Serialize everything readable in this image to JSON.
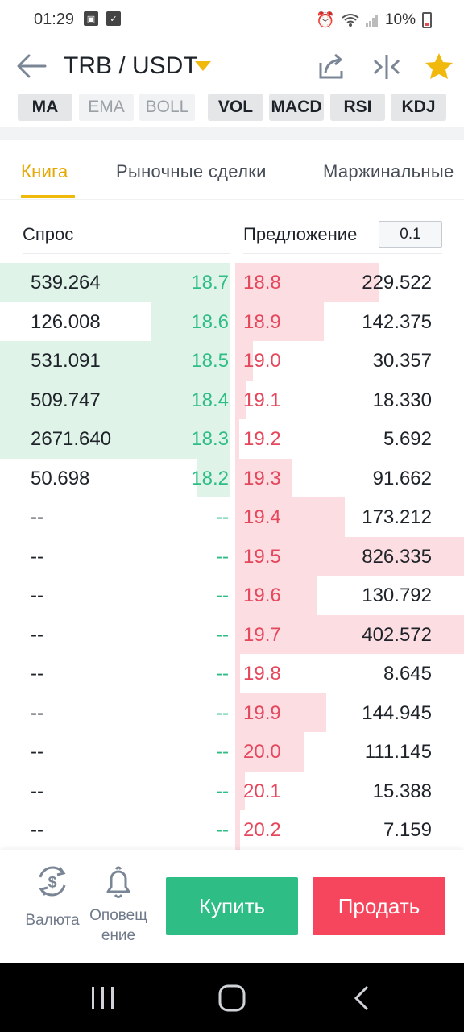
{
  "status_bar": {
    "time": "01:29",
    "battery": "10%"
  },
  "header": {
    "pair": "TRB / USDT",
    "icons": [
      "share-icon",
      "split-icon",
      "favorite-star-icon"
    ],
    "star_color": "#f0b90b"
  },
  "indicators": [
    {
      "label": "MA",
      "active": true
    },
    {
      "label": "EMA",
      "active": false
    },
    {
      "label": "BOLL",
      "active": false
    },
    {
      "label": "VOL",
      "active": true
    },
    {
      "label": "MACD",
      "active": true
    },
    {
      "label": "RSI",
      "active": true
    },
    {
      "label": "KDJ",
      "active": true
    }
  ],
  "tabs": [
    {
      "label": "Книга",
      "active": true
    },
    {
      "label": "Рыночные сделки",
      "active": false
    },
    {
      "label": "Маржинальные",
      "active": false
    }
  ],
  "order_book": {
    "bid_label": "Спрос",
    "ask_label": "Предложение",
    "step": "0.1",
    "colors": {
      "bid": "#2ebd85",
      "ask": "#e5475c",
      "bid_bg": "#dff3e8",
      "ask_bg": "#fcdde2"
    },
    "rows": [
      {
        "bid_qty": "539.264",
        "bid_price": "18.7",
        "ask_price": "18.8",
        "ask_qty": "229.522"
      },
      {
        "bid_qty": "126.008",
        "bid_price": "18.6",
        "ask_price": "18.9",
        "ask_qty": "142.375"
      },
      {
        "bid_qty": "531.091",
        "bid_price": "18.5",
        "ask_price": "19.0",
        "ask_qty": "30.357"
      },
      {
        "bid_qty": "509.747",
        "bid_price": "18.4",
        "ask_price": "19.1",
        "ask_qty": "18.330"
      },
      {
        "bid_qty": "2671.640",
        "bid_price": "18.3",
        "ask_price": "19.2",
        "ask_qty": "5.692"
      },
      {
        "bid_qty": "50.698",
        "bid_price": "18.2",
        "ask_price": "19.3",
        "ask_qty": "91.662"
      },
      {
        "bid_qty": "--",
        "bid_price": "--",
        "ask_price": "19.4",
        "ask_qty": "173.212"
      },
      {
        "bid_qty": "--",
        "bid_price": "--",
        "ask_price": "19.5",
        "ask_qty": "826.335"
      },
      {
        "bid_qty": "--",
        "bid_price": "--",
        "ask_price": "19.6",
        "ask_qty": "130.792"
      },
      {
        "bid_qty": "--",
        "bid_price": "--",
        "ask_price": "19.7",
        "ask_qty": "402.572"
      },
      {
        "bid_qty": "--",
        "bid_price": "--",
        "ask_price": "19.8",
        "ask_qty": "8.645"
      },
      {
        "bid_qty": "--",
        "bid_price": "--",
        "ask_price": "19.9",
        "ask_qty": "144.945"
      },
      {
        "bid_qty": "--",
        "bid_price": "--",
        "ask_price": "20.0",
        "ask_qty": "111.145"
      },
      {
        "bid_qty": "--",
        "bid_price": "--",
        "ask_price": "20.1",
        "ask_qty": "15.388"
      },
      {
        "bid_qty": "--",
        "bid_price": "--",
        "ask_price": "20.2",
        "ask_qty": "7.159"
      }
    ]
  },
  "bottom_bar": {
    "currency_label": "Валюта",
    "alert_label": "Оповещ ение",
    "buy_label": "Купить",
    "sell_label": "Продать",
    "buy_color": "#2ebd85",
    "sell_color": "#f6465d"
  }
}
